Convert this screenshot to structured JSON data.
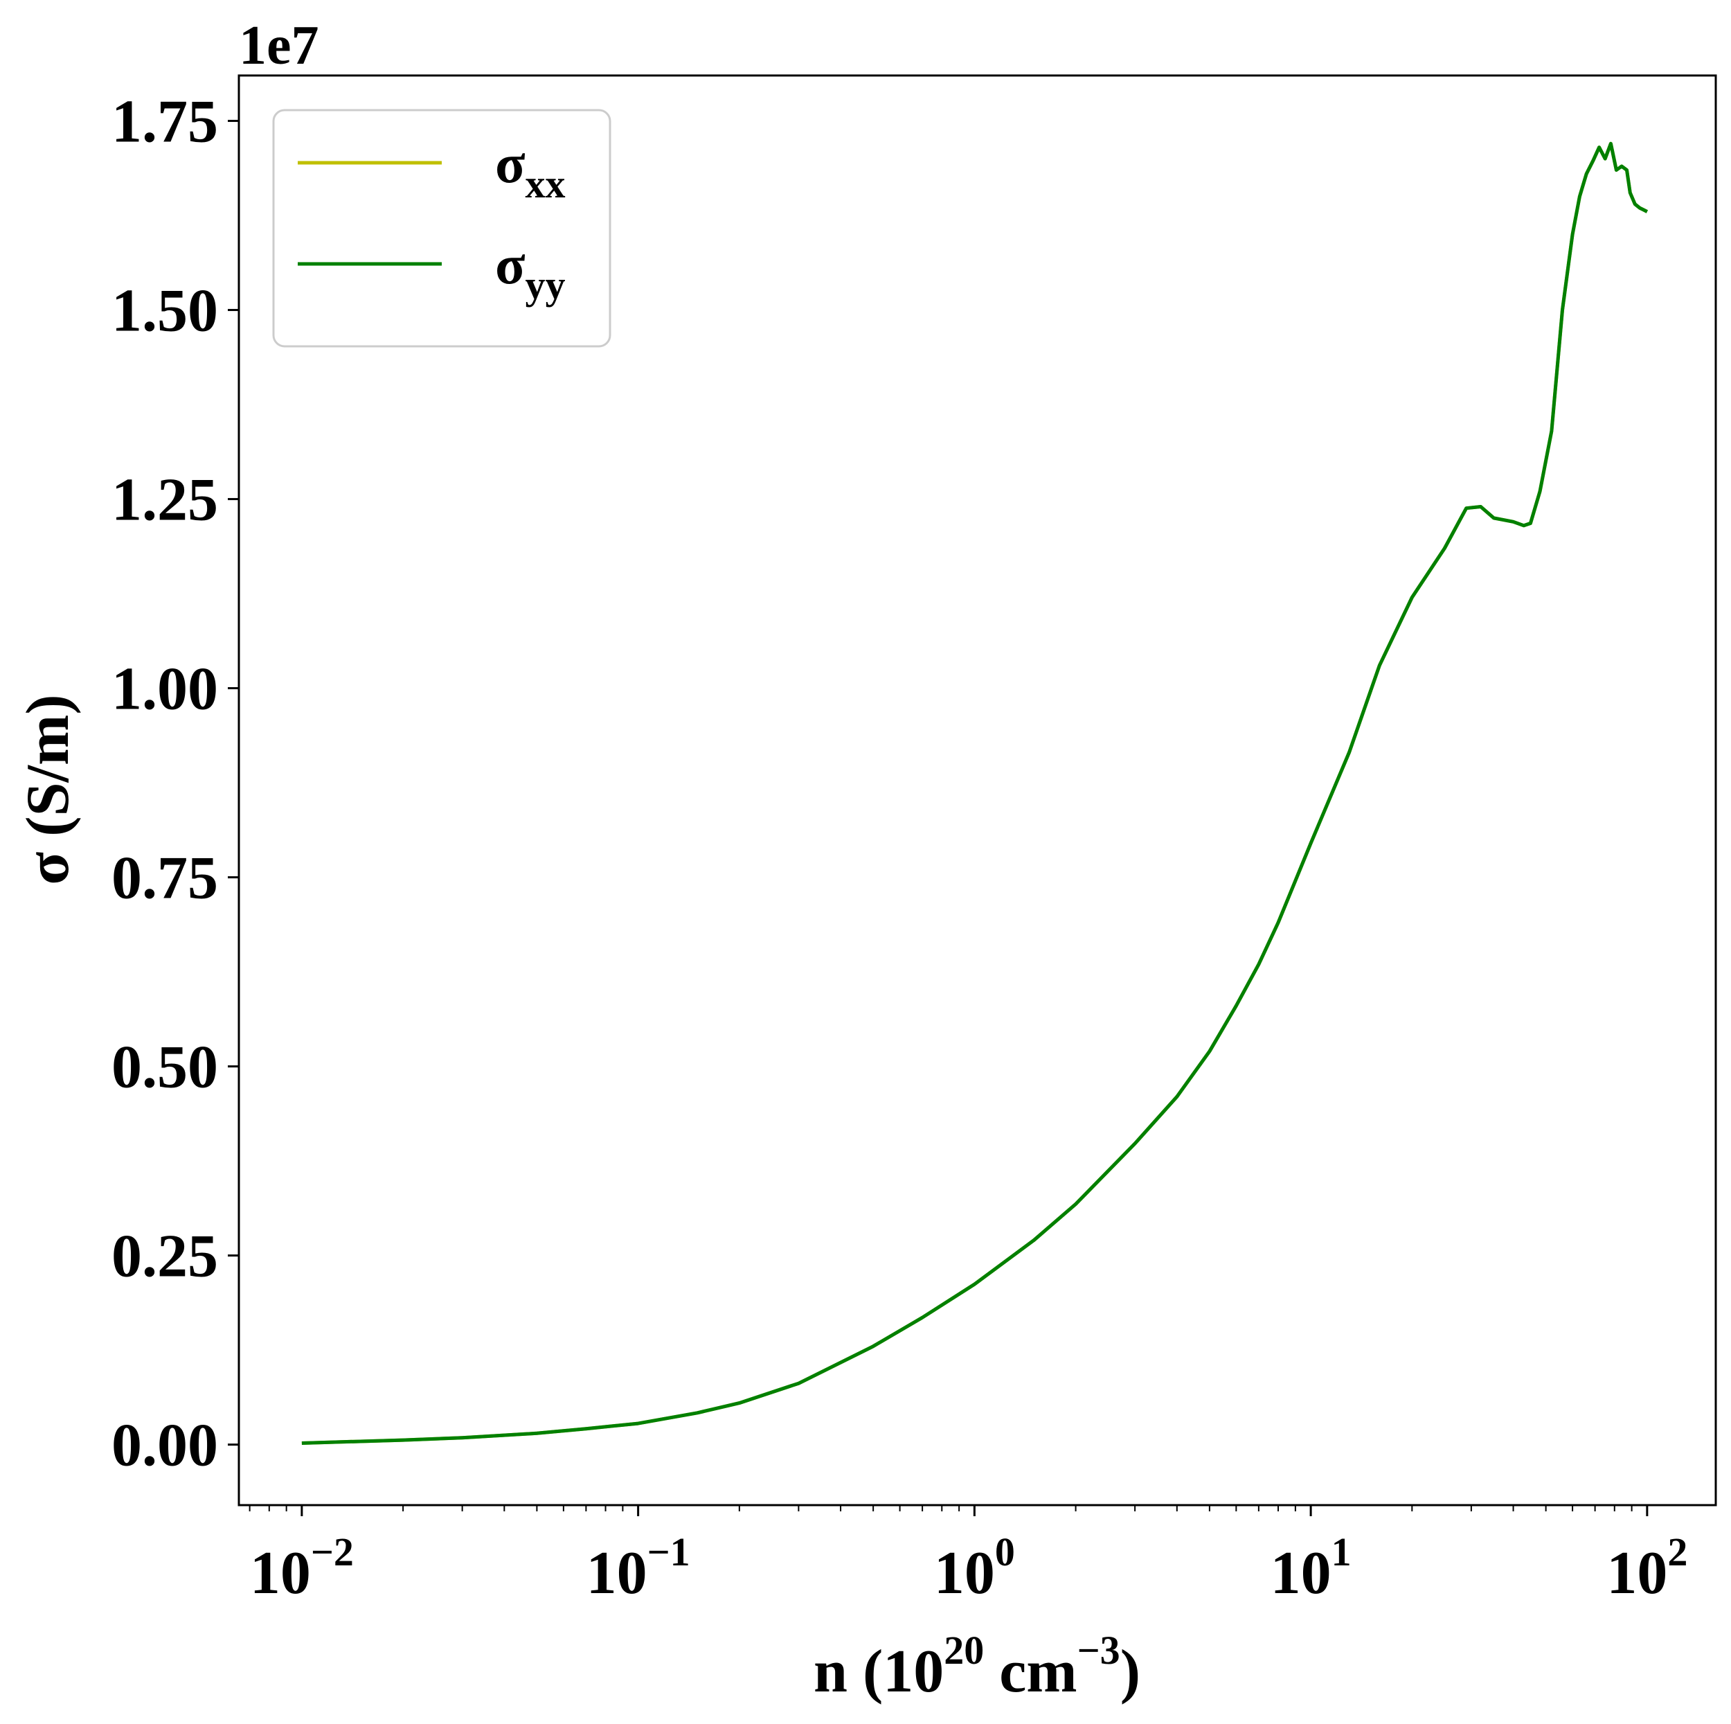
{
  "chart_data": {
    "type": "line",
    "xscale": "log",
    "xlim": [
      0.0065,
      160
    ],
    "ylim": [
      -0.08,
      1.81
    ],
    "y_offset_text": "1e7",
    "x_ticks": [
      {
        "base": "10",
        "exp": "−2",
        "value": 0.01
      },
      {
        "base": "10",
        "exp": "−1",
        "value": 0.1
      },
      {
        "base": "10",
        "exp": "0",
        "value": 1
      },
      {
        "base": "10",
        "exp": "1",
        "value": 10
      },
      {
        "base": "10",
        "exp": "2",
        "value": 100
      }
    ],
    "y_ticks": [
      {
        "label": "0.00",
        "value": 0.0
      },
      {
        "label": "0.25",
        "value": 0.25
      },
      {
        "label": "0.50",
        "value": 0.5
      },
      {
        "label": "0.75",
        "value": 0.75
      },
      {
        "label": "1.00",
        "value": 1.0
      },
      {
        "label": "1.25",
        "value": 1.25
      },
      {
        "label": "1.50",
        "value": 1.5
      },
      {
        "label": "1.75",
        "value": 1.75
      }
    ],
    "xlabel": {
      "prefix": "n (10",
      "sup1": "20",
      "mid": " cm",
      "sup2": "−3",
      "suffix": ")"
    },
    "ylabel": "σ (S/m)",
    "legend": {
      "position": "upper-left",
      "entries": [
        {
          "base": "σ",
          "sub": "xx",
          "color": "#bfbf00"
        },
        {
          "base": "σ",
          "sub": "yy",
          "color": "#008000"
        }
      ]
    },
    "series": [
      {
        "color": "#bfbf00",
        "x": [
          0.01,
          0.02,
          0.03,
          0.05,
          0.07,
          0.1,
          0.15,
          0.2,
          0.3,
          0.5,
          0.7,
          1.0,
          1.5,
          2.0,
          3.0,
          4.0,
          5.0,
          6.0,
          7.0,
          8.0,
          10.0,
          13.0,
          16.0,
          20.0,
          25.0,
          29.0,
          32.0,
          35.0,
          40.0,
          43.0,
          45.0,
          48.0,
          52.0,
          56.0,
          60.0,
          63.0,
          66.0,
          69.0,
          72.0,
          75.0,
          78.0,
          81.0,
          84.0,
          87.0,
          89.0,
          92.0,
          95.0,
          98.0,
          100.0
        ],
        "y": [
          0.002,
          0.006,
          0.009,
          0.015,
          0.021,
          0.028,
          0.042,
          0.055,
          0.081,
          0.13,
          0.168,
          0.212,
          0.27,
          0.318,
          0.398,
          0.46,
          0.52,
          0.58,
          0.635,
          0.69,
          0.795,
          0.915,
          1.03,
          1.12,
          1.185,
          1.238,
          1.24,
          1.225,
          1.22,
          1.215,
          1.218,
          1.26,
          1.34,
          1.5,
          1.6,
          1.65,
          1.68,
          1.697,
          1.715,
          1.7,
          1.72,
          1.685,
          1.69,
          1.685,
          1.655,
          1.64,
          1.635,
          1.632,
          1.63
        ]
      },
      {
        "color": "#008000",
        "x": [
          0.01,
          0.02,
          0.03,
          0.05,
          0.07,
          0.1,
          0.15,
          0.2,
          0.3,
          0.5,
          0.7,
          1.0,
          1.5,
          2.0,
          3.0,
          4.0,
          5.0,
          6.0,
          7.0,
          8.0,
          10.0,
          13.0,
          16.0,
          20.0,
          25.0,
          29.0,
          32.0,
          35.0,
          40.0,
          43.0,
          45.0,
          48.0,
          52.0,
          56.0,
          60.0,
          63.0,
          66.0,
          69.0,
          72.0,
          75.0,
          78.0,
          81.0,
          84.0,
          87.0,
          89.0,
          92.0,
          95.0,
          98.0,
          100.0
        ],
        "y": [
          0.002,
          0.006,
          0.009,
          0.015,
          0.021,
          0.028,
          0.042,
          0.055,
          0.081,
          0.13,
          0.168,
          0.212,
          0.27,
          0.318,
          0.398,
          0.46,
          0.52,
          0.58,
          0.635,
          0.69,
          0.795,
          0.915,
          1.03,
          1.12,
          1.185,
          1.238,
          1.24,
          1.225,
          1.22,
          1.215,
          1.218,
          1.26,
          1.34,
          1.5,
          1.6,
          1.65,
          1.68,
          1.697,
          1.715,
          1.7,
          1.72,
          1.685,
          1.69,
          1.685,
          1.655,
          1.64,
          1.635,
          1.632,
          1.63
        ]
      }
    ]
  }
}
